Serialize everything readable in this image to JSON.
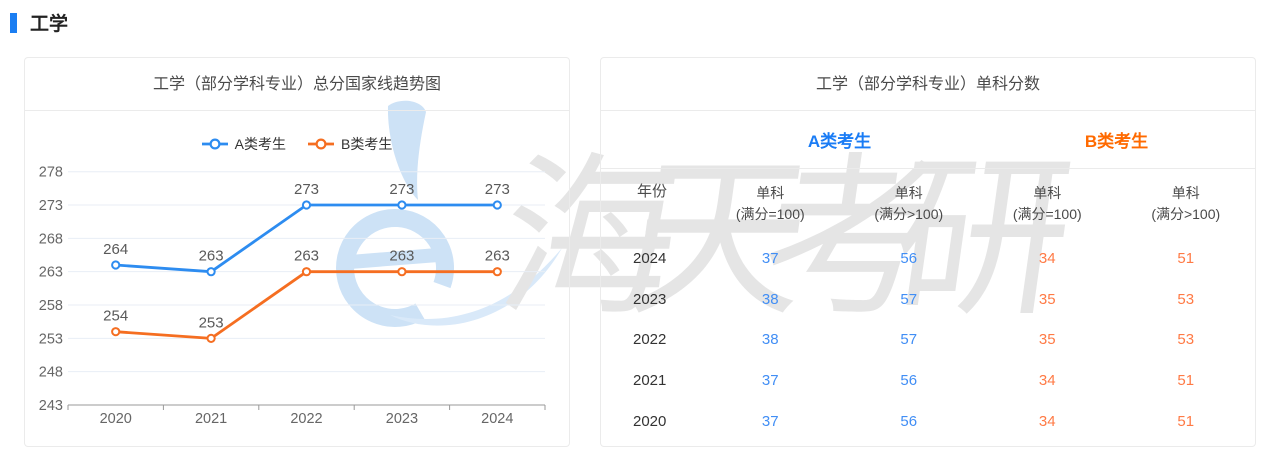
{
  "page": {
    "title": "工学",
    "accent_color": "#1b7ef2"
  },
  "chart_card": {
    "title": "工学（部分学科专业）总分国家线趋势图"
  },
  "chart_data": {
    "type": "line",
    "x": [
      "2020",
      "2021",
      "2022",
      "2023",
      "2024"
    ],
    "series": [
      {
        "name": "A类考生",
        "color": "#2d8cf0",
        "values": [
          264,
          263,
          273,
          273,
          273
        ]
      },
      {
        "name": "B类考生",
        "color": "#f56e21",
        "values": [
          254,
          253,
          263,
          263,
          263
        ]
      }
    ],
    "yticks": [
      243,
      248,
      253,
      258,
      263,
      268,
      273,
      278
    ],
    "ylim": [
      243,
      278
    ],
    "grid": true,
    "legend_position": "top",
    "point_label_color": "#595959",
    "axis_color": "#999999",
    "tick_label_color": "#666666",
    "gridline_color": "#e8eef6"
  },
  "table_card": {
    "title": "工学（部分学科专业）单科分数",
    "groups": [
      {
        "label": "A类考生",
        "color": "#1a7cf5"
      },
      {
        "label": "B类考生",
        "color": "#ff6a00"
      }
    ],
    "year_header": "年份",
    "sub_columns": [
      {
        "line1": "单科",
        "line2": "(满分=100)"
      },
      {
        "line1": "单科",
        "line2": "(满分>100)"
      },
      {
        "line1": "单科",
        "line2": "(满分=100)"
      },
      {
        "line1": "单科",
        "line2": "(满分>100)"
      }
    ],
    "value_colors": [
      "#418ef5",
      "#418ef5",
      "#ff7a45",
      "#ff7a45"
    ],
    "rows": [
      {
        "year": "2024",
        "values": [
          "37",
          "56",
          "34",
          "51"
        ]
      },
      {
        "year": "2023",
        "values": [
          "38",
          "57",
          "35",
          "53"
        ]
      },
      {
        "year": "2022",
        "values": [
          "38",
          "57",
          "35",
          "53"
        ]
      },
      {
        "year": "2021",
        "values": [
          "37",
          "56",
          "34",
          "51"
        ]
      },
      {
        "year": "2020",
        "values": [
          "37",
          "56",
          "34",
          "51"
        ]
      }
    ]
  },
  "watermark": {
    "text": "海天考研",
    "logo": "haitian-e-logo"
  }
}
